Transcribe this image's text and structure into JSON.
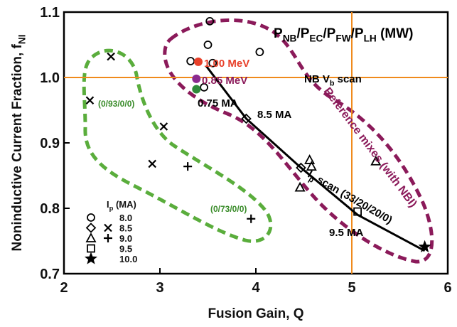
{
  "chart_data": {
    "type": "scatter",
    "xlabel": "Fusion Gain, Q",
    "ylabel": [
      "Noninductive Current Fraction, f",
      "NI"
    ],
    "xlim": [
      2,
      6
    ],
    "xticks": [
      2,
      3,
      4,
      5,
      6
    ],
    "ylim": [
      0.7,
      1.1
    ],
    "yticks": [
      0.7,
      0.8,
      0.9,
      {
        "value": 1.0,
        "label": "1.0"
      },
      1.1
    ],
    "ref_lines": {
      "color": "#f08a1c",
      "h": [
        1.0
      ],
      "v": [
        5.0
      ]
    },
    "series": [
      {
        "marker": "line",
        "color": "#000000",
        "x": [
          3.48,
          3.9,
          4.47,
          5.06,
          5.76
        ],
        "values": [
          1.018,
          0.937,
          0.862,
          0.79,
          0.735
        ]
      },
      {
        "marker": "circle",
        "color": "#000000",
        "x": [
          3.52,
          3.5,
          3.32,
          3.55,
          4.04,
          3.46
        ],
        "values": [
          1.086,
          1.05,
          1.025,
          1.022,
          1.039,
          0.985
        ]
      },
      {
        "marker": "x",
        "color": "#000000",
        "x": [
          2.49,
          2.27,
          3.04,
          2.92
        ],
        "values": [
          1.032,
          0.965,
          0.925,
          0.868
        ]
      },
      {
        "marker": "diamond",
        "color": "#000000",
        "x": [
          3.9,
          4.47
        ],
        "values": [
          0.937,
          0.862
        ]
      },
      {
        "marker": "plus",
        "color": "#000000",
        "x": [
          3.29,
          3.95
        ],
        "values": [
          0.864,
          0.784
        ]
      },
      {
        "marker": "triangle",
        "color": "#000000",
        "x": [
          4.46,
          4.56,
          4.58,
          5.25
        ],
        "values": [
          0.832,
          0.874,
          0.864,
          0.872
        ]
      },
      {
        "marker": "square",
        "color": "#000000",
        "x": [
          5.06
        ],
        "values": [
          0.795
        ]
      },
      {
        "marker": "star",
        "color": "#000000",
        "x": [
          5.76
        ],
        "values": [
          0.741
        ]
      },
      {
        "marker": "dot",
        "color": "#e8402a",
        "x": [
          3.4
        ],
        "values": [
          1.024
        ]
      },
      {
        "marker": "dot",
        "color": "#8b2a8f",
        "x": [
          3.38
        ],
        "values": [
          0.998
        ]
      },
      {
        "marker": "dot",
        "color": "#2e8b3a",
        "x": [
          3.38
        ],
        "values": [
          0.982
        ]
      }
    ],
    "legend": {
      "title": [
        "I",
        "p",
        " (MA)"
      ],
      "entries": [
        {
          "label": "8.0",
          "markers": [
            "circle"
          ]
        },
        {
          "label": "8.5",
          "markers": [
            "diamond",
            "x"
          ]
        },
        {
          "label": "9.0",
          "markers": [
            "triangle",
            "plus"
          ]
        },
        {
          "label": "9.5",
          "markers": [
            "square"
          ]
        },
        {
          "label": "10.0",
          "markers": [
            "star"
          ]
        }
      ]
    },
    "annotations": [
      {
        "parts": [
          "P",
          "NB",
          "/P",
          "EC",
          "/P",
          "FW",
          "/P",
          "LH",
          " (MW)"
        ],
        "color": "#000000"
      },
      {
        "parts": [
          "(0/93/0/0)"
        ],
        "color": "#3a8c2a"
      },
      {
        "parts": [
          "(0/73/0/0)"
        ],
        "color": "#3a8c2a"
      },
      {
        "parts": [
          "1.00 MeV"
        ],
        "color": "#e8402a"
      },
      {
        "parts": [
          "0.85 MeV"
        ],
        "color": "#8b1a5a"
      },
      {
        "parts": [
          "0.75 MA"
        ],
        "color": "#000000"
      },
      {
        "parts": [
          "8.5 MA"
        ],
        "color": "#000000"
      },
      {
        "parts": [
          "NB V",
          "b",
          " scan"
        ],
        "color": "#000000"
      },
      {
        "parts": [
          "I",
          "p",
          " scan (33/20/20/0)"
        ],
        "color": "#000000"
      },
      {
        "parts": [
          "9.5 MA"
        ],
        "color": "#000000"
      },
      {
        "parts": [
          "Reference mixes (with NBI)"
        ],
        "color": "#8b1a5a"
      }
    ]
  }
}
